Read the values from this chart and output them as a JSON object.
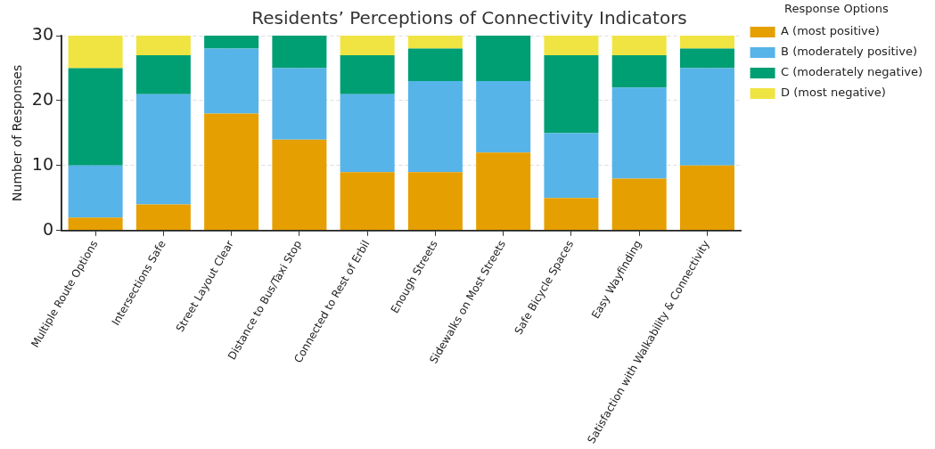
{
  "chart_data": {
    "type": "bar",
    "title": "Residents’ Perceptions of Connectivity Indicators",
    "ylabel": "Number of Responses",
    "legend_title": "Response Options",
    "categories": [
      "Multiple Route Options",
      "Intersections Safe",
      "Street Layout Clear",
      "Distance to Bus/Taxi Stop",
      "Connected to Rest of Erbil",
      "Enough Streets",
      "Sidewalks on Most Streets",
      "Safe Bicycle Spaces",
      "Easy Wayfinding",
      "Satisfaction with Walkability & Connectivity"
    ],
    "series": [
      {
        "name": "A (most positive)",
        "color": "#e69f00",
        "values": [
          2,
          4,
          18,
          14,
          9,
          9,
          12,
          5,
          8,
          10
        ]
      },
      {
        "name": "B (moderately positive)",
        "color": "#56b4e9",
        "values": [
          8,
          17,
          10,
          11,
          12,
          14,
          11,
          10,
          14,
          15
        ]
      },
      {
        "name": "C (moderately negative)",
        "color": "#009e73",
        "values": [
          15,
          6,
          2,
          5,
          6,
          5,
          7,
          12,
          5,
          3
        ]
      },
      {
        "name": "D (most negative)",
        "color": "#f0e442",
        "values": [
          5,
          3,
          0,
          0,
          3,
          2,
          0,
          3,
          3,
          2
        ]
      }
    ],
    "stacked": true,
    "ylim": [
      0,
      30
    ],
    "yticks": [
      0,
      10,
      20,
      30
    ],
    "grid": true,
    "legend": "right"
  }
}
